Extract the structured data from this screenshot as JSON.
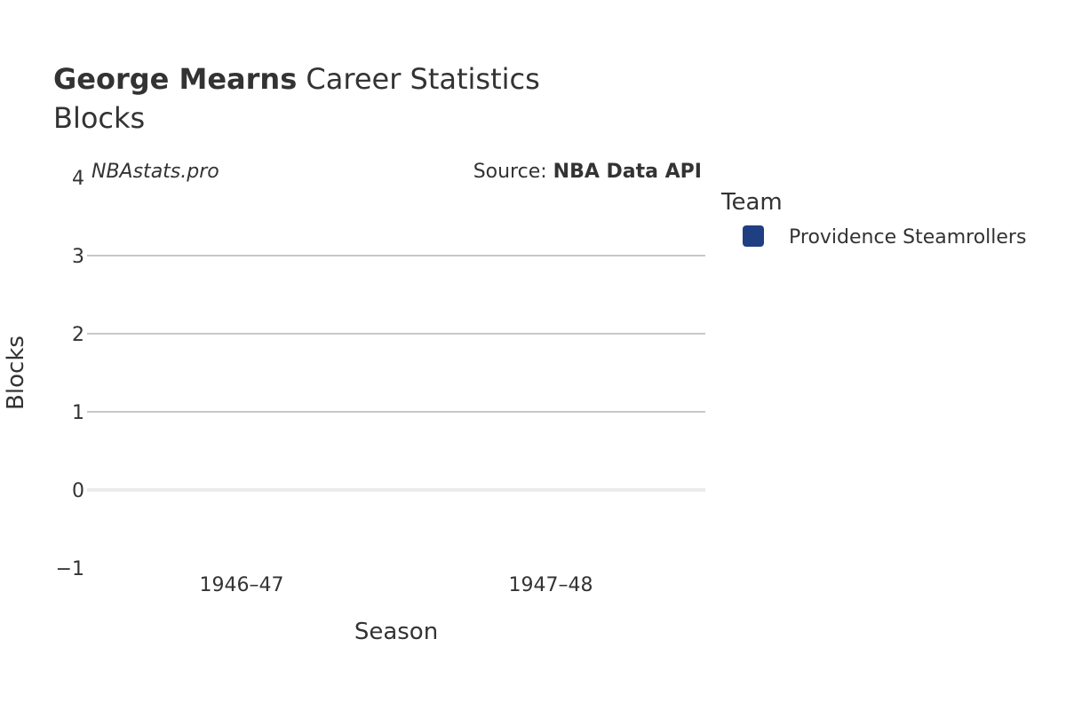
{
  "chart_data": {
    "type": "bar",
    "title_bold": "George Mearns",
    "title_rest": " Career Statistics",
    "subtitle": "Blocks",
    "watermark": "NBAstats.pro",
    "source_prefix": "Source: ",
    "source_name": "NBA Data API",
    "xlabel": "Season",
    "ylabel": "Blocks",
    "categories": [
      "1946–47",
      "1947–48"
    ],
    "series": [
      {
        "name": "Providence Steamrollers",
        "color": "#1f3f82",
        "values": [
          0,
          0
        ]
      }
    ],
    "ylim": [
      -1,
      4
    ],
    "yticks": [
      -1,
      0,
      1,
      2,
      3,
      4
    ],
    "ytick_labels": [
      "−1",
      "0",
      "1",
      "2",
      "3",
      "4"
    ],
    "grid": true,
    "legend": {
      "title": "Team",
      "position": "right"
    }
  }
}
